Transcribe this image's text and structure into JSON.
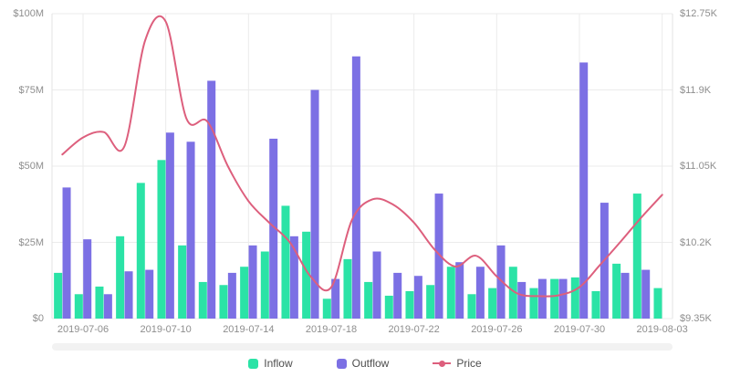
{
  "chart_data": {
    "type": "combo",
    "title": "",
    "categories": [
      "2019-07-05",
      "2019-07-06",
      "2019-07-07",
      "2019-07-08",
      "2019-07-09",
      "2019-07-10",
      "2019-07-11",
      "2019-07-12",
      "2019-07-13",
      "2019-07-14",
      "2019-07-15",
      "2019-07-16",
      "2019-07-17",
      "2019-07-18",
      "2019-07-19",
      "2019-07-20",
      "2019-07-21",
      "2019-07-22",
      "2019-07-23",
      "2019-07-24",
      "2019-07-25",
      "2019-07-26",
      "2019-07-27",
      "2019-07-28",
      "2019-07-29",
      "2019-07-30",
      "2019-07-31",
      "2019-08-01",
      "2019-08-02",
      "2019-08-03"
    ],
    "x_tick_labels": [
      "2019-07-06",
      "2019-07-10",
      "2019-07-14",
      "2019-07-18",
      "2019-07-22",
      "2019-07-26",
      "2019-07-30",
      "2019-08-03"
    ],
    "series": [
      {
        "name": "Inflow",
        "type": "bar",
        "axis": "left",
        "unit": "USD millions",
        "color": "#2BE3A6",
        "values": [
          15,
          8,
          10.5,
          27,
          44.5,
          52,
          24,
          12,
          11,
          17,
          22,
          37,
          28.5,
          6.5,
          19.5,
          12,
          7.5,
          9,
          11,
          17,
          8,
          10,
          17,
          10,
          13,
          13.5,
          9,
          18,
          41,
          10
        ]
      },
      {
        "name": "Outflow",
        "type": "bar",
        "axis": "left",
        "unit": "USD millions",
        "color": "#7C70E4",
        "values": [
          43,
          26,
          8,
          15.5,
          16,
          61,
          58,
          78,
          15,
          24,
          59,
          27,
          75,
          13,
          86,
          22,
          15,
          14,
          41,
          18.5,
          17,
          24,
          12,
          13,
          13,
          84,
          38,
          15,
          16,
          null
        ]
      },
      {
        "name": "Price",
        "type": "line",
        "axis": "right",
        "unit": "USD thousands",
        "color": "#DD5F7D",
        "values": [
          11.18,
          11.37,
          11.43,
          11.27,
          12.45,
          12.66,
          11.58,
          11.55,
          11.05,
          10.66,
          10.42,
          10.2,
          9.82,
          9.7,
          10.45,
          10.68,
          10.62,
          10.42,
          10.12,
          9.93,
          10.05,
          9.82,
          9.63,
          9.6,
          9.61,
          9.7,
          9.95,
          10.21,
          10.48,
          10.73
        ]
      }
    ],
    "left_axis": {
      "tick_labels": [
        "$0",
        "$25M",
        "$50M",
        "$75M",
        "$100M"
      ],
      "tick_values": [
        0,
        25,
        50,
        75,
        100
      ],
      "min": 0,
      "max": 100
    },
    "right_axis": {
      "tick_labels": [
        "$9.35K",
        "$10.2K",
        "$11.05K",
        "$11.9K",
        "$12.75K"
      ],
      "tick_values": [
        9.35,
        10.2,
        11.05,
        11.9,
        12.75
      ],
      "min": 9.35,
      "max": 12.75
    },
    "grid": true,
    "legend_position": "bottom",
    "legend": [
      {
        "label": "Inflow",
        "marker": "square",
        "color": "#2BE3A6"
      },
      {
        "label": "Outflow",
        "marker": "square",
        "color": "#7C70E4"
      },
      {
        "label": "Price",
        "marker": "line-dot",
        "color": "#DD5F7D"
      }
    ],
    "colors": {
      "grid": "#ebebeb",
      "axis_line": "#e3e3e3",
      "tick_text": "#8e8e8e",
      "legend_text": "#4d4d4d"
    }
  }
}
